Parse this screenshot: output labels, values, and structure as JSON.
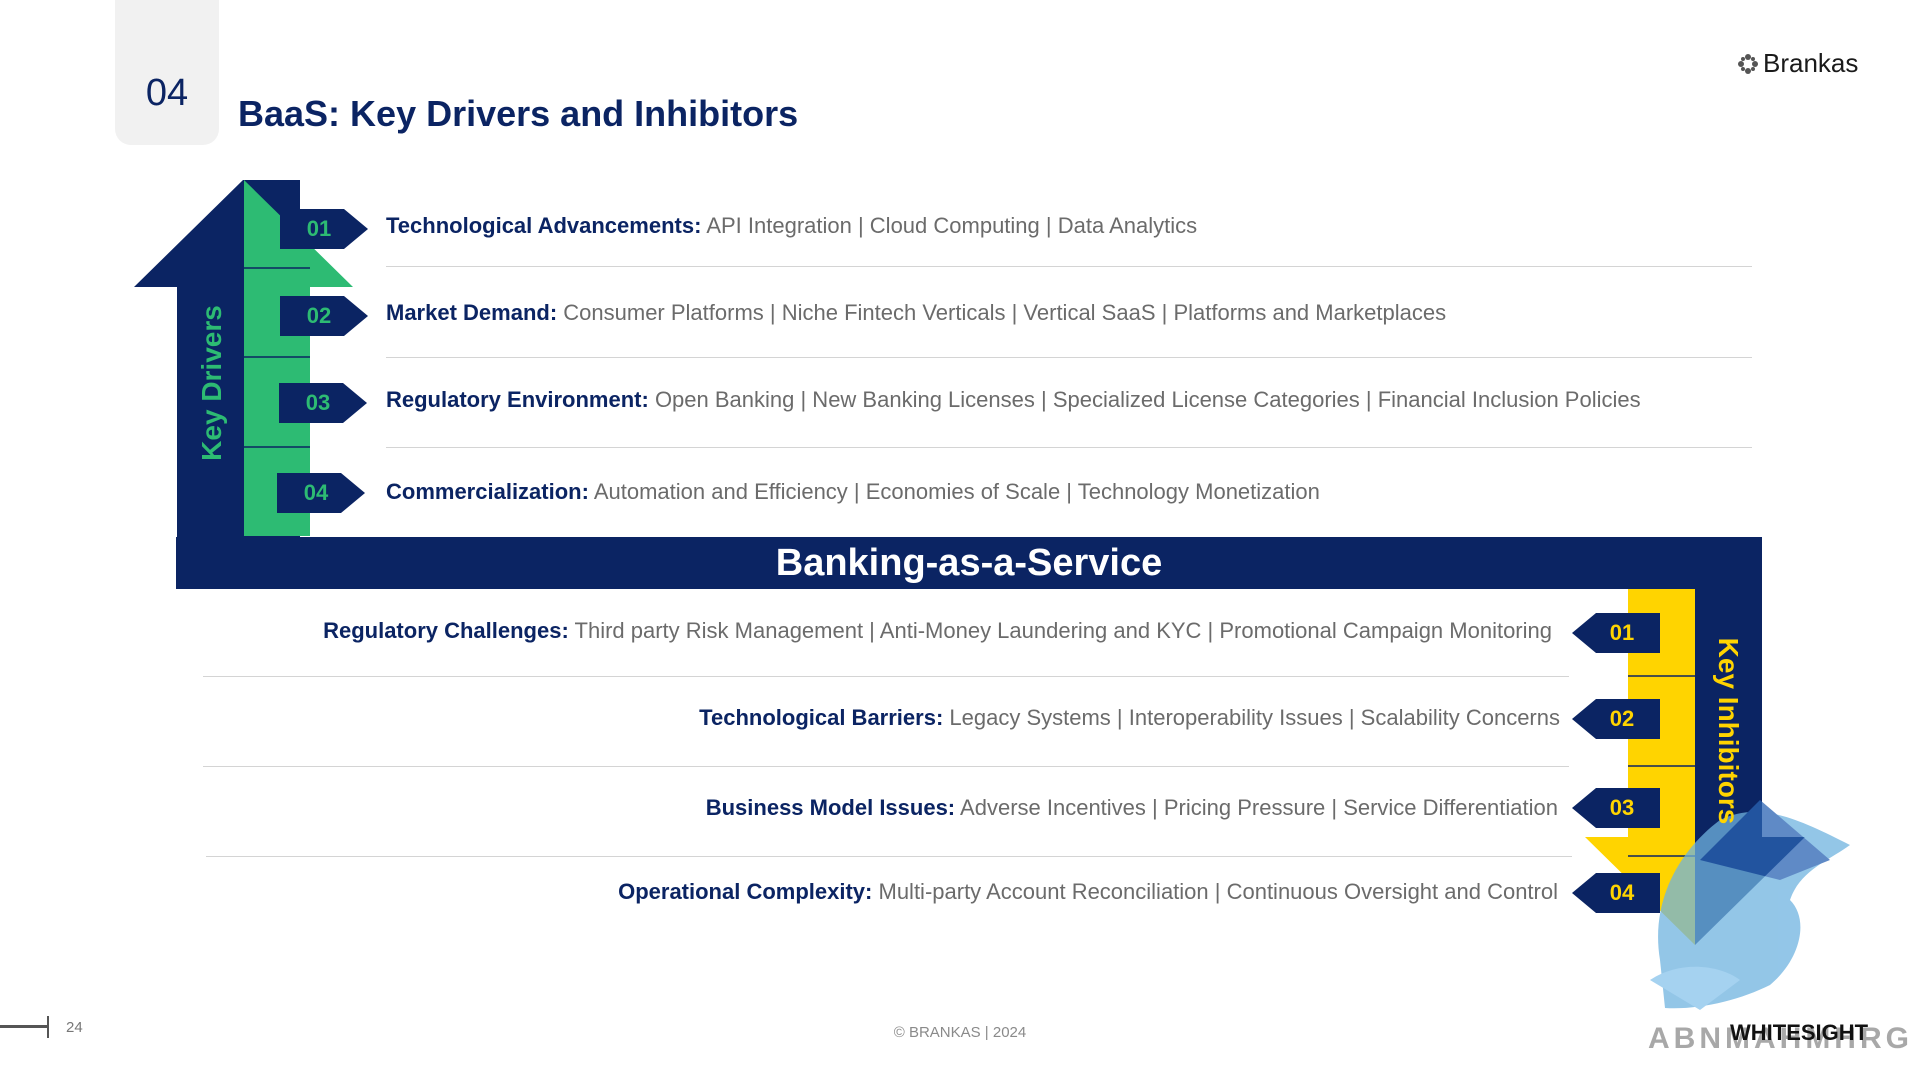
{
  "header": {
    "section_number": "04",
    "title": "BaaS: Key Drivers and Inhibitors",
    "brand": "Brankas"
  },
  "diagram": {
    "center_label": "Banking-as-a-Service",
    "drivers_label": "Key Drivers",
    "inhibitors_label": "Key Inhibitors",
    "drivers": [
      {
        "num": "01",
        "title": "Technological Advancements:",
        "detail": "API Integration | Cloud Computing | Data Analytics"
      },
      {
        "num": "02",
        "title": "Market Demand:",
        "detail": "Consumer Platforms | Niche Fintech  Verticals | Vertical SaaS | Platforms and Marketplaces"
      },
      {
        "num": "03",
        "title": "Regulatory Environment:",
        "detail": "Open Banking | New Banking Licenses | Specialized License Categories | Financial Inclusion Policies"
      },
      {
        "num": "04",
        "title": "Commercialization:",
        "detail": "Automation and Efficiency | Economies of Scale | Technology Monetization"
      }
    ],
    "inhibitors": [
      {
        "num": "01",
        "title": "Regulatory Challenges:",
        "detail": "Third party Risk Management | Anti-Money Laundering and KYC |  Promotional Campaign Monitoring"
      },
      {
        "num": "02",
        "title": "Technological Barriers:",
        "detail": "Legacy Systems | Interoperability Issues | Scalability Concerns"
      },
      {
        "num": "03",
        "title": "Business Model Issues:",
        "detail": "Adverse Incentives | Pricing Pressure | Service Differentiation"
      },
      {
        "num": "04",
        "title": "Operational Complexity:",
        "detail": "Multi-party Account Reconciliation | Continuous Oversight and Control"
      }
    ],
    "colors": {
      "navy": "#0b2463",
      "green": "#2dbb73",
      "yellow": "#ffd400",
      "gray_text": "#6b6b6b"
    }
  },
  "footer": {
    "page_number": "24",
    "copyright": "© BRANKAS | 2024",
    "watermark_brand": "WHITESIGHT",
    "watermark_site": "ABNMAHMHRG"
  }
}
